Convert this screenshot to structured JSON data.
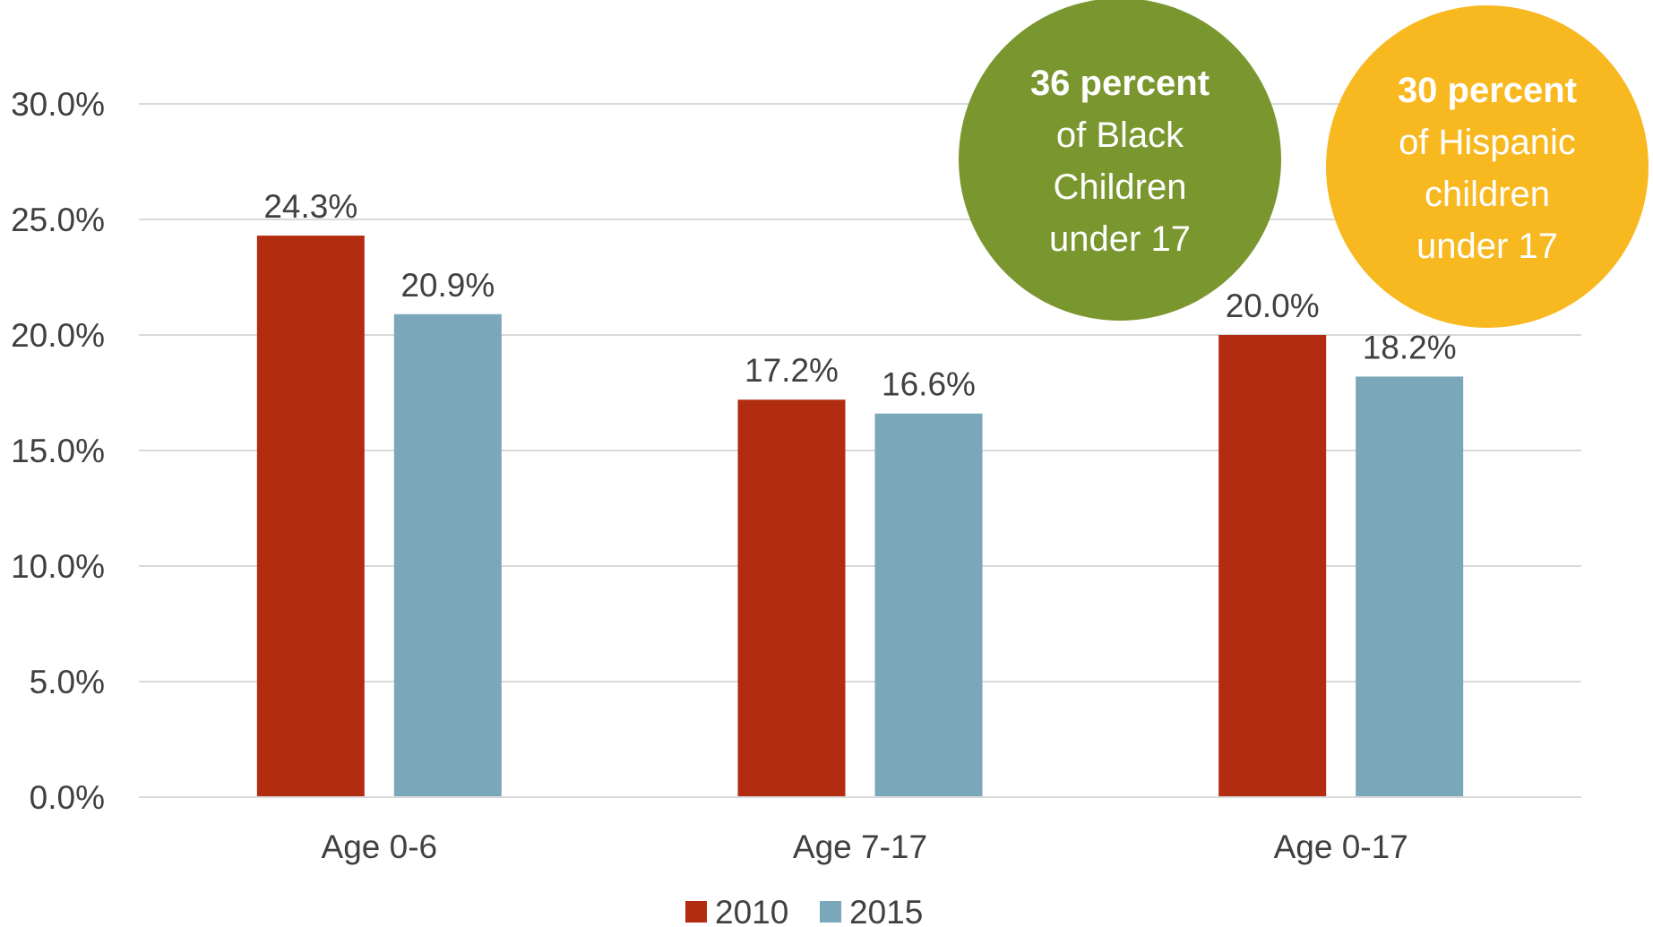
{
  "chart_data": {
    "type": "bar",
    "categories": [
      "Age 0-6",
      "Age 7-17",
      "Age 0-17"
    ],
    "series": [
      {
        "name": "2010",
        "color": "#b22d10",
        "values": [
          24.3,
          17.2,
          20.0
        ],
        "labels": [
          "24.3%",
          "17.2%",
          "20.0%"
        ]
      },
      {
        "name": "2015",
        "color": "#7ba7ba",
        "values": [
          20.9,
          16.6,
          18.2
        ],
        "labels": [
          "20.9%",
          "16.6%",
          "18.2%"
        ]
      }
    ],
    "ylim": [
      0,
      30
    ],
    "yticks": [
      0,
      5,
      10,
      15,
      20,
      25,
      30
    ],
    "ytick_labels": [
      "0.0%",
      "5.0%",
      "10.0%",
      "15.0%",
      "20.0%",
      "25.0%",
      "30.0%"
    ],
    "grid": true,
    "legend_position": "bottom",
    "title": "",
    "xlabel": "",
    "ylabel": ""
  },
  "callouts": [
    {
      "bold": "36 percent",
      "lines": [
        "of Black",
        "Children",
        "under 17"
      ],
      "color": "#7a962e"
    },
    {
      "bold": "30 percent",
      "lines": [
        "of Hispanic",
        "children",
        "under 17"
      ],
      "color": "#f8b820"
    }
  ]
}
